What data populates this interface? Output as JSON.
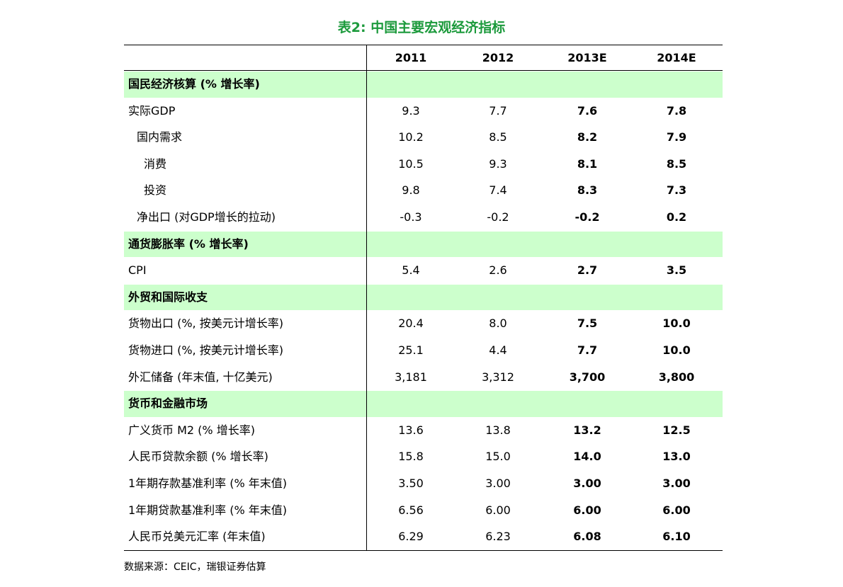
{
  "header": {
    "title": "表2: 中国主要宏观经济指标"
  },
  "table": {
    "columns": [
      "2011",
      "2012",
      "2013E",
      "2014E"
    ],
    "sections": [
      {
        "title": "国民经济核算 (% 增长率)",
        "rows": [
          {
            "label": "实际GDP",
            "values": [
              "9.3",
              "7.7",
              "7.6",
              "7.8"
            ]
          },
          {
            "label": "国内需求",
            "values": [
              "10.2",
              "8.5",
              "8.2",
              "7.9"
            ]
          },
          {
            "label": "消费",
            "values": [
              "10.5",
              "9.3",
              "8.1",
              "8.5"
            ]
          },
          {
            "label": "投资",
            "values": [
              "9.8",
              "7.4",
              "8.3",
              "7.3"
            ]
          },
          {
            "label": "净出口 (对GDP增长的拉动)",
            "values": [
              "-0.3",
              "-0.2",
              "-0.2",
              "0.2"
            ]
          }
        ]
      },
      {
        "title": "通货膨胀率 (% 增长率)",
        "rows": [
          {
            "label": "CPI",
            "values": [
              "5.4",
              "2.6",
              "2.7",
              "3.5"
            ]
          }
        ]
      },
      {
        "title": "外贸和国际收支",
        "rows": [
          {
            "label": "货物出口 (%, 按美元计增长率)",
            "values": [
              "20.4",
              "8.0",
              "7.5",
              "10.0"
            ]
          },
          {
            "label": "货物进口 (%, 按美元计增长率)",
            "values": [
              "25.1",
              "4.4",
              "7.7",
              "10.0"
            ]
          },
          {
            "label": "外汇储备 (年末值, 十亿美元)",
            "values": [
              "3,181",
              "3,312",
              "3,700",
              "3,800"
            ]
          }
        ]
      },
      {
        "title": "货币和金融市场",
        "rows": [
          {
            "label": "广义货币 M2 (% 增长率)",
            "values": [
              "13.6",
              "13.8",
              "13.2",
              "12.5"
            ]
          },
          {
            "label": "人民币贷款余额 (% 增长率)",
            "values": [
              "15.8",
              "15.0",
              "14.0",
              "13.0"
            ]
          },
          {
            "label": "1年期存款基准利率 (% 年末值)",
            "values": [
              "3.50",
              "3.00",
              "3.00",
              "3.00"
            ]
          },
          {
            "label": "1年期贷款基准利率 (% 年末值)",
            "values": [
              "6.56",
              "6.00",
              "6.00",
              "6.00"
            ]
          },
          {
            "label": "人民币兑美元汇率 (年末值)",
            "values": [
              "6.29",
              "6.23",
              "6.08",
              "6.10"
            ]
          }
        ]
      }
    ]
  },
  "footer": {
    "source": "数据来源：CEIC，瑞银证券估算"
  }
}
